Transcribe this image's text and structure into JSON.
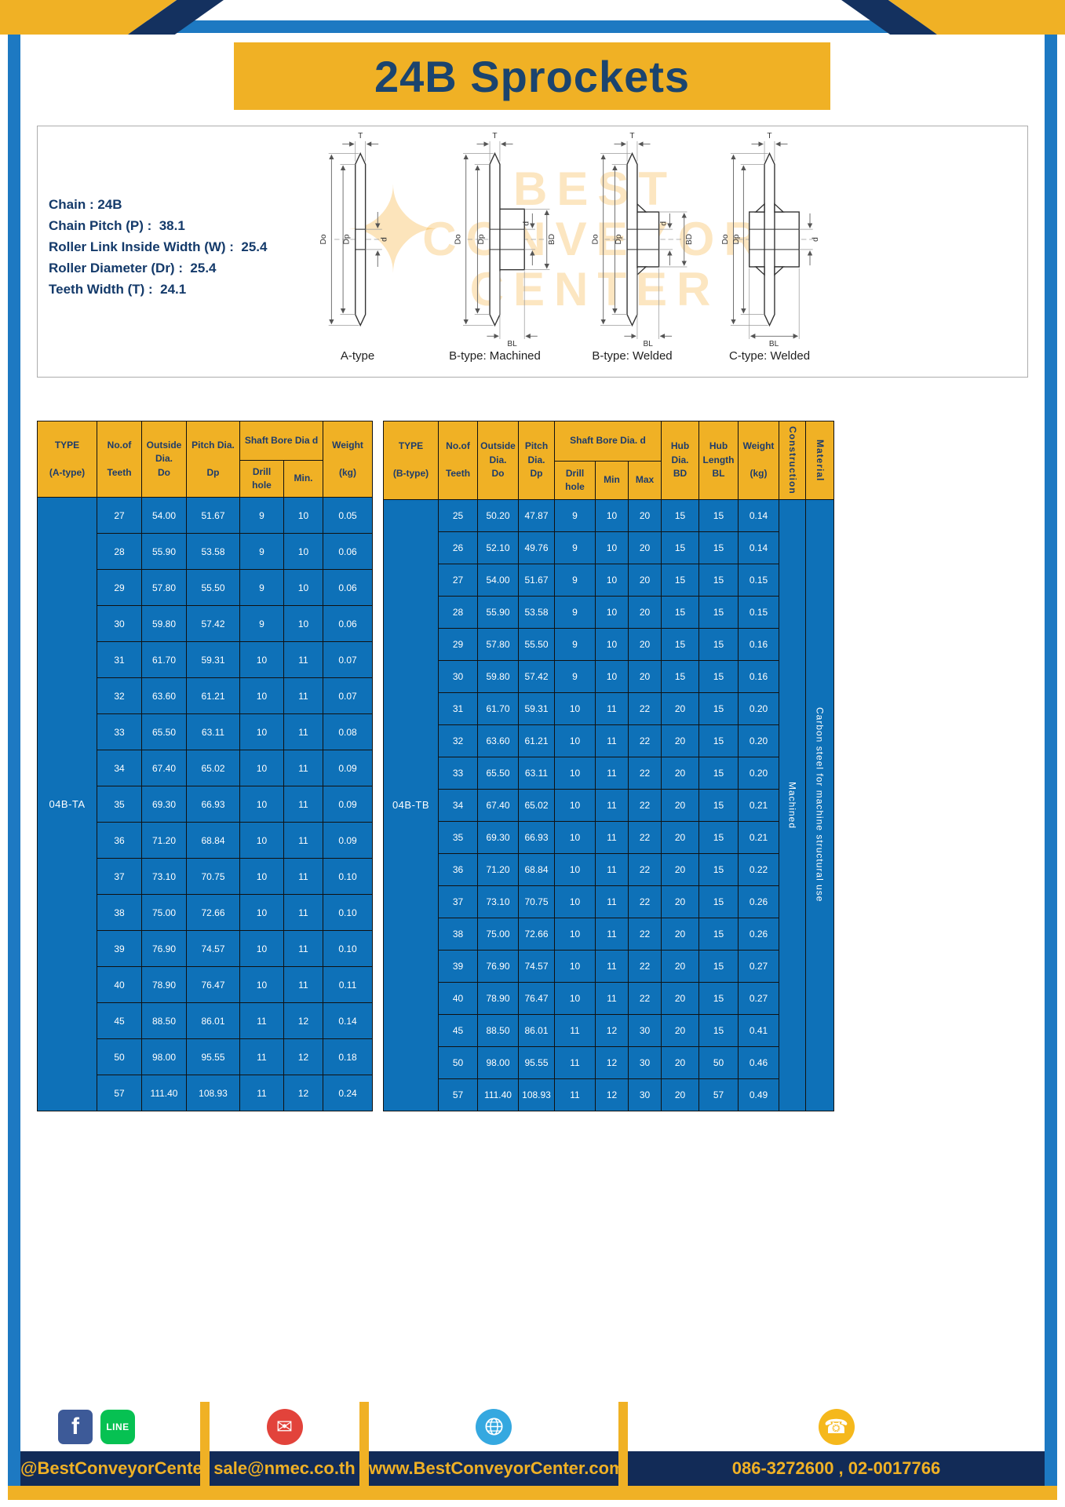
{
  "title": "24B Sprockets",
  "specs": [
    "Chain : 24B",
    "Chain Pitch (P) :  38.1",
    "Roller Link Inside Width (W) :  25.4",
    "Roller Diameter (Dr) :  25.4",
    "Teeth Width (T) :  24.1"
  ],
  "watermark": [
    "BEST",
    "CONVEYOR",
    "CENTER"
  ],
  "dims": {
    "T": "T",
    "Do": "Do",
    "Dp": "Dp",
    "d": "d",
    "BD": "BD",
    "BL": "BL"
  },
  "diagrams": [
    {
      "label": "A-type"
    },
    {
      "label": "B-type: Machined"
    },
    {
      "label": "B-type: Welded"
    },
    {
      "label": "C-type: Welded"
    }
  ],
  "table_a": {
    "type_header": "TYPE\n\n(A-type)",
    "type_value": "04B-TA",
    "col_teeth": "No.of\n\nTeeth",
    "col_outside": "Outside\nDia.\nDo",
    "col_pitch": "Pitch Dia.\n\nDp",
    "group_bore": "Shaft Bore Dia d",
    "col_drill": "Drill hole",
    "col_min": "Min.",
    "col_weight": "Weight\n\n(kg)",
    "rows": [
      [
        "27",
        "54.00",
        "51.67",
        "9",
        "10",
        "0.05"
      ],
      [
        "28",
        "55.90",
        "53.58",
        "9",
        "10",
        "0.06"
      ],
      [
        "29",
        "57.80",
        "55.50",
        "9",
        "10",
        "0.06"
      ],
      [
        "30",
        "59.80",
        "57.42",
        "9",
        "10",
        "0.06"
      ],
      [
        "31",
        "61.70",
        "59.31",
        "10",
        "11",
        "0.07"
      ],
      [
        "32",
        "63.60",
        "61.21",
        "10",
        "11",
        "0.07"
      ],
      [
        "33",
        "65.50",
        "63.11",
        "10",
        "11",
        "0.08"
      ],
      [
        "34",
        "67.40",
        "65.02",
        "10",
        "11",
        "0.09"
      ],
      [
        "35",
        "69.30",
        "66.93",
        "10",
        "11",
        "0.09"
      ],
      [
        "36",
        "71.20",
        "68.84",
        "10",
        "11",
        "0.09"
      ],
      [
        "37",
        "73.10",
        "70.75",
        "10",
        "11",
        "0.10"
      ],
      [
        "38",
        "75.00",
        "72.66",
        "10",
        "11",
        "0.10"
      ],
      [
        "39",
        "76.90",
        "74.57",
        "10",
        "11",
        "0.10"
      ],
      [
        "40",
        "78.90",
        "76.47",
        "10",
        "11",
        "0.11"
      ],
      [
        "45",
        "88.50",
        "86.01",
        "11",
        "12",
        "0.14"
      ],
      [
        "50",
        "98.00",
        "95.55",
        "11",
        "12",
        "0.18"
      ],
      [
        "57",
        "111.40",
        "108.93",
        "11",
        "12",
        "0.24"
      ]
    ]
  },
  "table_b": {
    "type_header": "TYPE\n\n(B-type)",
    "type_value": "04B-TB",
    "col_teeth": "No.of\n\nTeeth",
    "col_outside": "Outside\nDia.\nDo",
    "col_pitch": "Pitch\nDia.\nDp",
    "group_bore": "Shaft Bore Dia.  d",
    "col_drill": "Drill hole",
    "col_min": "Min",
    "col_max": "Max",
    "col_hub_dia": "Hub\nDia.\nBD",
    "col_hub_len": "Hub\nLength\nBL",
    "col_weight": "Weight\n\n(kg)",
    "col_construction": "Construction",
    "col_material": "Material",
    "construction_value": "Machined",
    "material_value": "Carbon steel for machine structural use",
    "rows": [
      [
        "25",
        "50.20",
        "47.87",
        "9",
        "10",
        "20",
        "15",
        "15",
        "0.14"
      ],
      [
        "26",
        "52.10",
        "49.76",
        "9",
        "10",
        "20",
        "15",
        "15",
        "0.14"
      ],
      [
        "27",
        "54.00",
        "51.67",
        "9",
        "10",
        "20",
        "15",
        "15",
        "0.15"
      ],
      [
        "28",
        "55.90",
        "53.58",
        "9",
        "10",
        "20",
        "15",
        "15",
        "0.15"
      ],
      [
        "29",
        "57.80",
        "55.50",
        "9",
        "10",
        "20",
        "15",
        "15",
        "0.16"
      ],
      [
        "30",
        "59.80",
        "57.42",
        "9",
        "10",
        "20",
        "15",
        "15",
        "0.16"
      ],
      [
        "31",
        "61.70",
        "59.31",
        "10",
        "11",
        "22",
        "20",
        "15",
        "0.20"
      ],
      [
        "32",
        "63.60",
        "61.21",
        "10",
        "11",
        "22",
        "20",
        "15",
        "0.20"
      ],
      [
        "33",
        "65.50",
        "63.11",
        "10",
        "11",
        "22",
        "20",
        "15",
        "0.20"
      ],
      [
        "34",
        "67.40",
        "65.02",
        "10",
        "11",
        "22",
        "20",
        "15",
        "0.21"
      ],
      [
        "35",
        "69.30",
        "66.93",
        "10",
        "11",
        "22",
        "20",
        "15",
        "0.21"
      ],
      [
        "36",
        "71.20",
        "68.84",
        "10",
        "11",
        "22",
        "20",
        "15",
        "0.22"
      ],
      [
        "37",
        "73.10",
        "70.75",
        "10",
        "11",
        "22",
        "20",
        "15",
        "0.26"
      ],
      [
        "38",
        "75.00",
        "72.66",
        "10",
        "11",
        "22",
        "20",
        "15",
        "0.26"
      ],
      [
        "39",
        "76.90",
        "74.57",
        "10",
        "11",
        "22",
        "20",
        "15",
        "0.27"
      ],
      [
        "40",
        "78.90",
        "76.47",
        "10",
        "11",
        "22",
        "20",
        "15",
        "0.27"
      ],
      [
        "45",
        "88.50",
        "86.01",
        "11",
        "12",
        "30",
        "20",
        "15",
        "0.41"
      ],
      [
        "50",
        "98.00",
        "95.55",
        "11",
        "12",
        "30",
        "20",
        "50",
        "0.46"
      ],
      [
        "57",
        "111.40",
        "108.93",
        "11",
        "12",
        "30",
        "20",
        "57",
        "0.49"
      ]
    ]
  },
  "footer": {
    "handle": "@BestConveyorCenter",
    "email": "sale@nmec.co.th",
    "website": "www.BestConveyorCenter.com",
    "phone": "086-3272600 , 02-0017766",
    "icons": {
      "facebook": "f",
      "line": "LINE",
      "email": "✉",
      "phone": "☎"
    }
  },
  "colors": {
    "accent_yellow": "#f0b125",
    "table_blue": "#0e71b8",
    "frame_blue": "#1d79c2",
    "navy": "#14315f",
    "footer_navy": "#122b57"
  }
}
